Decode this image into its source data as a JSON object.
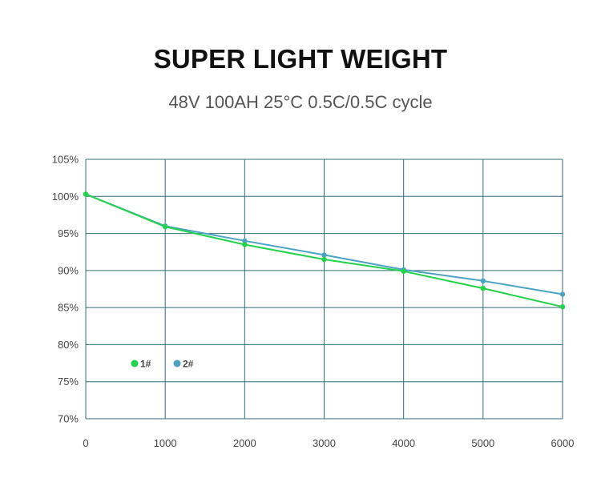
{
  "page": {
    "title": "SUPER LIGHT WEIGHT",
    "subtitle": "48V 100AH 25°C 0.5C/0.5C cycle"
  },
  "colors": {
    "grid": "#2e6e73",
    "series1": "#22d24a",
    "series2": "#4aa3c4"
  },
  "chart_data": {
    "type": "line",
    "title": "SUPER LIGHT WEIGHT",
    "subtitle": "48V 100AH 25°C 0.5C/0.5C cycle",
    "xlabel": "",
    "ylabel": "",
    "xlim": [
      0,
      6000
    ],
    "ylim": [
      70,
      105
    ],
    "x_ticks": [
      0,
      1000,
      2000,
      3000,
      4000,
      5000,
      6000
    ],
    "x_tick_labels": [
      "0",
      "1000",
      "2000",
      "3000",
      "4000",
      "5000",
      "6000"
    ],
    "y_ticks": [
      70,
      75,
      80,
      85,
      90,
      95,
      100,
      105
    ],
    "y_tick_labels": [
      "70%",
      "75%",
      "80%",
      "85%",
      "90%",
      "95%",
      "100%",
      "105%"
    ],
    "grid": true,
    "legend_position": "lower-left",
    "series": [
      {
        "name": "1#",
        "x": [
          0,
          1000,
          2000,
          3000,
          4000,
          5000,
          6000
        ],
        "values": [
          100.3,
          95.9,
          93.5,
          91.5,
          89.9,
          87.6,
          85.1
        ]
      },
      {
        "name": "2#",
        "x": [
          0,
          1000,
          2000,
          3000,
          4000,
          5000,
          6000
        ],
        "values": [
          100.3,
          96.0,
          94.0,
          92.1,
          90.1,
          88.6,
          86.8
        ]
      }
    ]
  }
}
